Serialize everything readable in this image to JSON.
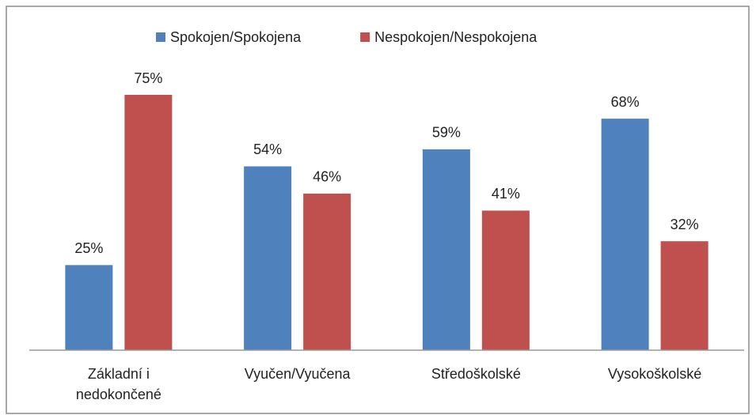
{
  "chart_data": {
    "type": "bar",
    "categories": [
      "Základní i nedokončené",
      "Vyučen/Vyučena",
      "Středoškolské",
      "Vysokoškolské"
    ],
    "series": [
      {
        "name": "Spokojen/Spokojena",
        "color": "#4f81bd",
        "values": [
          25,
          54,
          59,
          68
        ],
        "value_labels": [
          "25%",
          "54%",
          "59%",
          "68%"
        ]
      },
      {
        "name": "Nespokojen/Nespokojena",
        "color": "#c0504d",
        "values": [
          75,
          46,
          41,
          32
        ],
        "value_labels": [
          "75%",
          "46%",
          "41%",
          "32%"
        ]
      }
    ],
    "legend": "top"
  }
}
